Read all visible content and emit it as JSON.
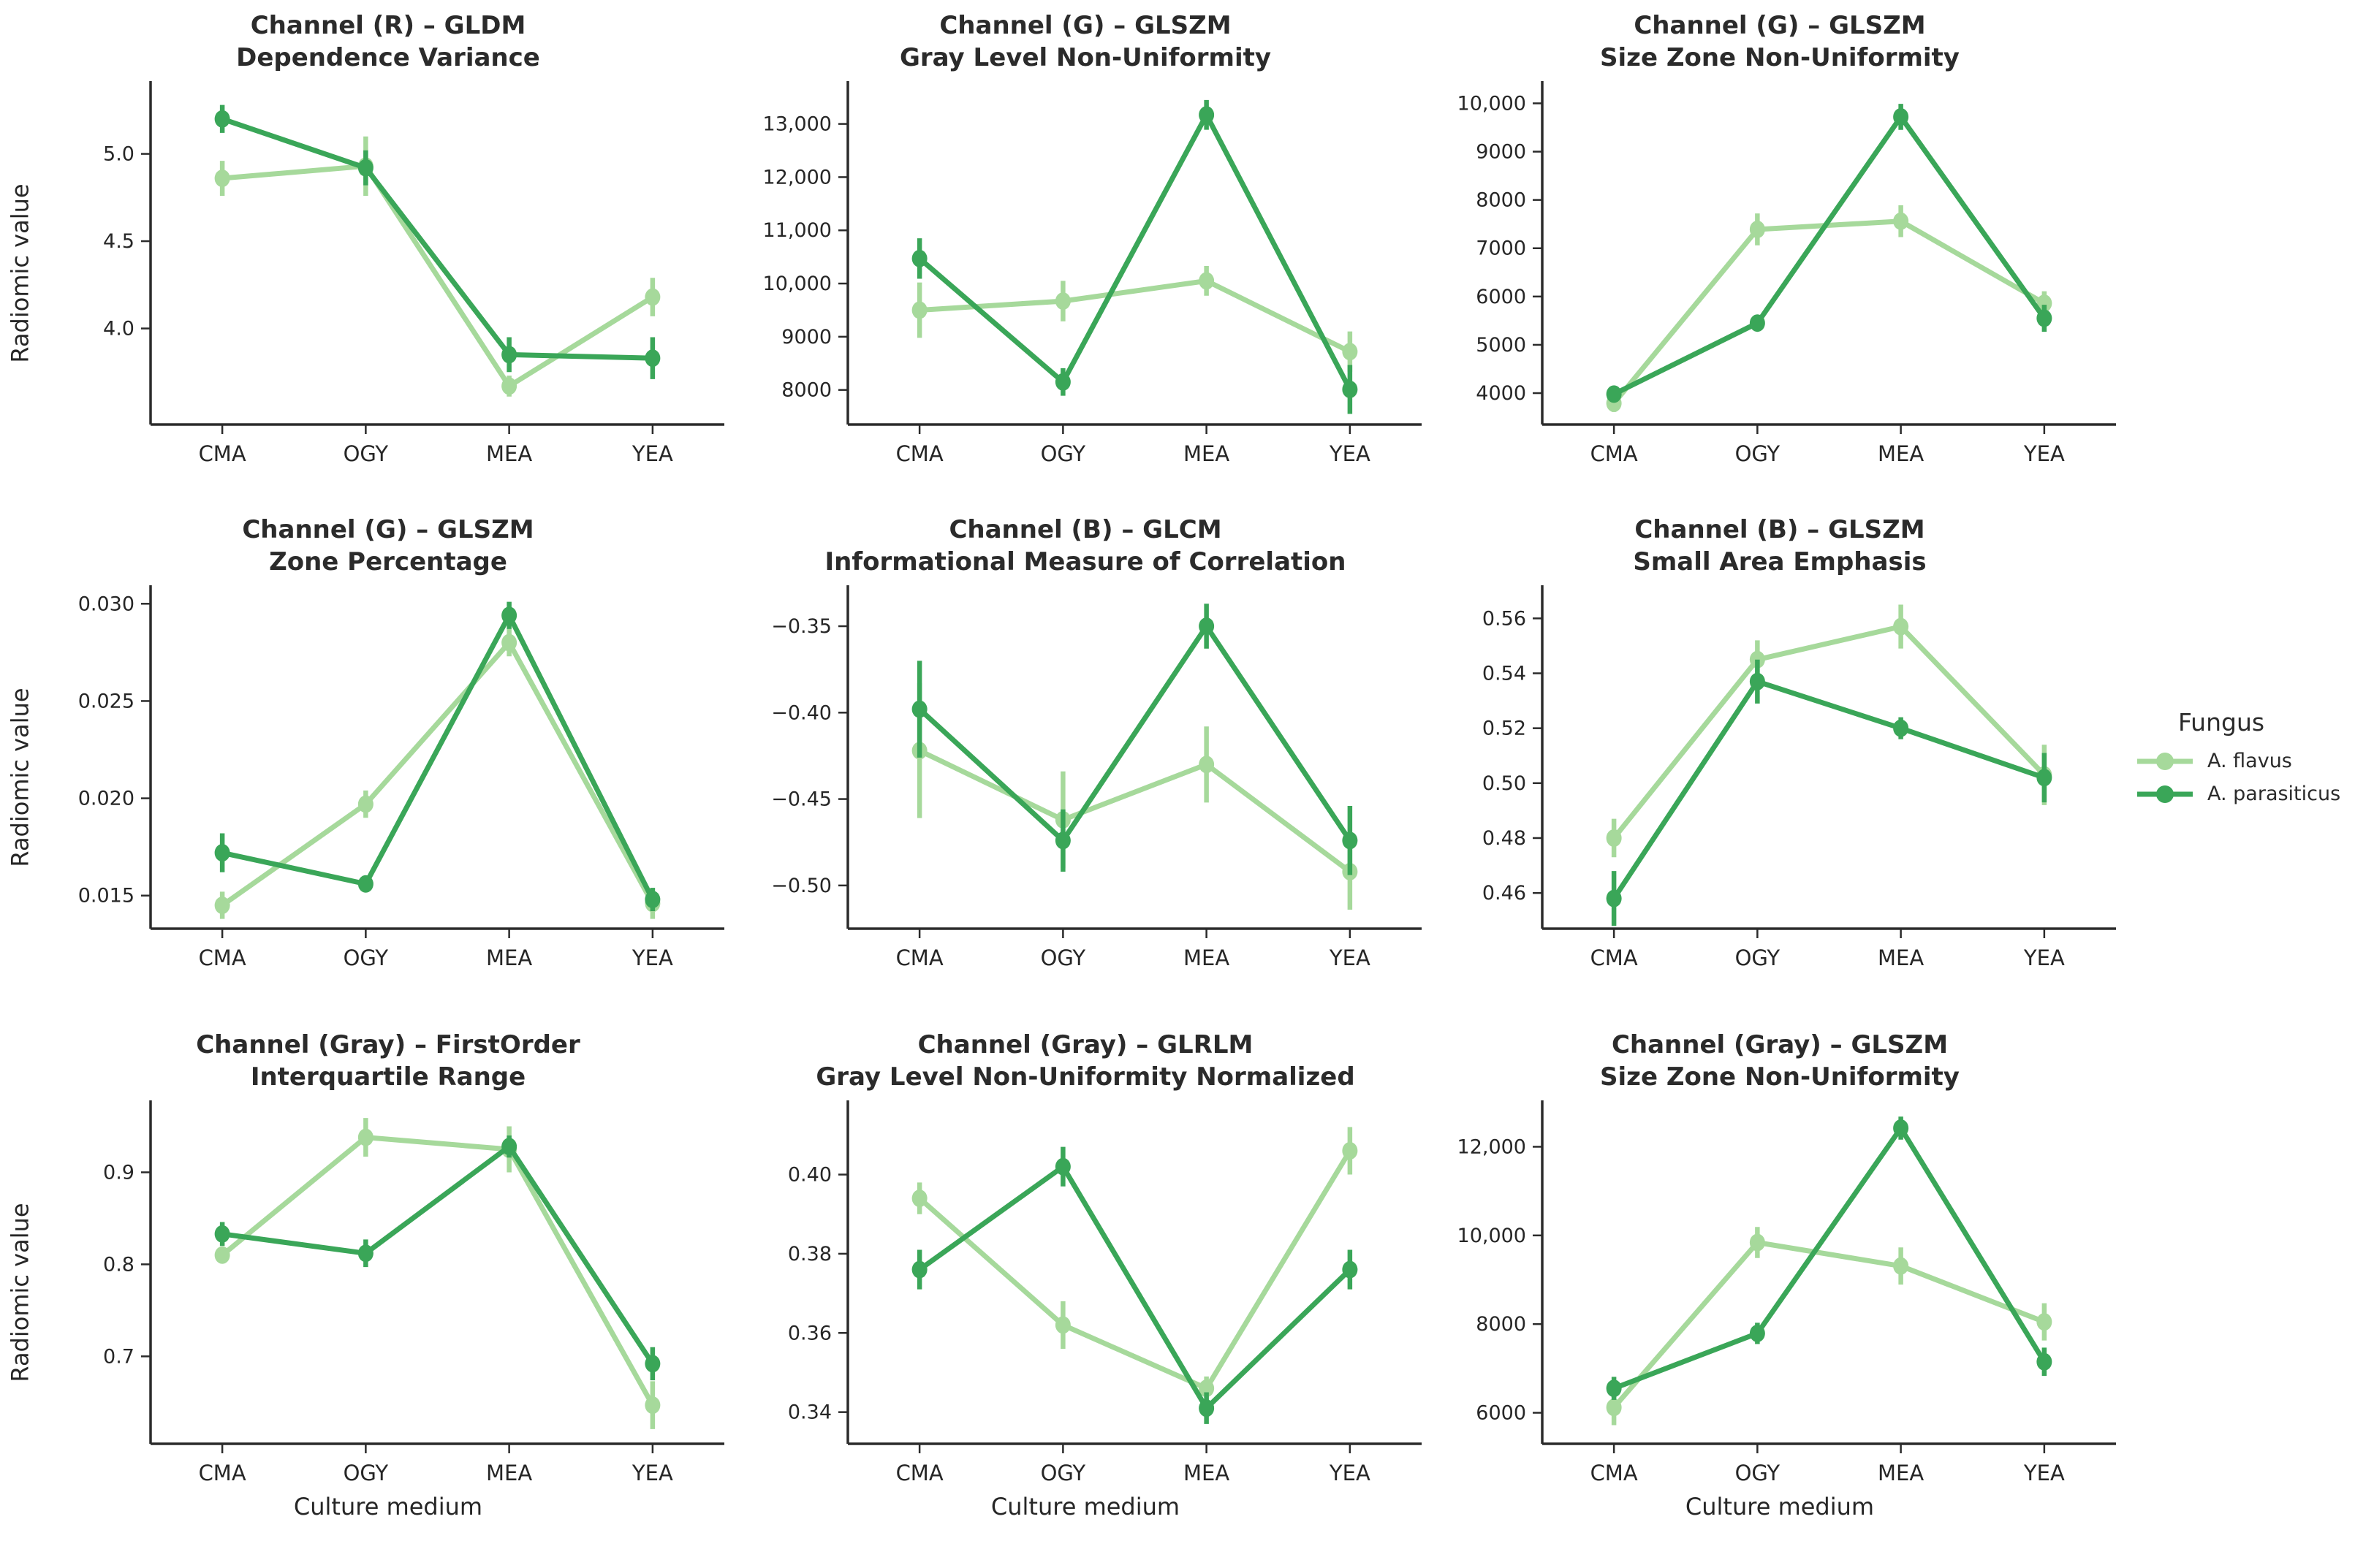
{
  "figure": {
    "ylabel": "Radiomic value",
    "xlabel": "Culture medium",
    "categories": [
      "CMA",
      "OGY",
      "MEA",
      "YEA"
    ],
    "legend": {
      "title": "Fungus",
      "position": "right-middle",
      "items": [
        {
          "label": "A. flavus",
          "color": "#a6d99b"
        },
        {
          "label": "A. parasiticus",
          "color": "#3aa658"
        }
      ]
    },
    "colors": {
      "flavus": "#a6d99b",
      "parasiticus": "#3aa658",
      "spine": "#2b2b2b",
      "text": "#262626"
    }
  },
  "chart_data": [
    {
      "type": "line",
      "title_line1": "Channel (R) – GLDM",
      "title_line2": "Dependence Variance",
      "categories": [
        "CMA",
        "OGY",
        "MEA",
        "YEA"
      ],
      "ylim": [
        3.45,
        5.4
      ],
      "yticks": [
        4.0,
        4.5,
        5.0
      ],
      "ytick_labels": [
        "4.0",
        "4.5",
        "5.0"
      ],
      "show_ylabel": true,
      "show_xlabel": false,
      "series": [
        {
          "name": "A. flavus",
          "values": [
            4.86,
            4.93,
            3.67,
            4.18
          ],
          "errors": [
            0.1,
            0.17,
            0.06,
            0.11
          ]
        },
        {
          "name": "A. parasiticus",
          "values": [
            5.2,
            4.92,
            3.85,
            3.83
          ],
          "errors": [
            0.08,
            0.1,
            0.1,
            0.12
          ]
        }
      ]
    },
    {
      "type": "line",
      "title_line1": "Channel (G) – GLSZM",
      "title_line2": "Gray Level Non-Uniformity",
      "categories": [
        "CMA",
        "OGY",
        "MEA",
        "YEA"
      ],
      "ylim": [
        7350,
        13750
      ],
      "yticks": [
        8000,
        9000,
        10000,
        11000,
        12000,
        13000
      ],
      "ytick_labels": [
        "8000",
        "9000",
        "10,000",
        "11,000",
        "12,000",
        "13,000"
      ],
      "show_ylabel": false,
      "show_xlabel": false,
      "series": [
        {
          "name": "A. flavus",
          "values": [
            9500,
            9670,
            10050,
            8720
          ],
          "errors": [
            520,
            380,
            280,
            380
          ]
        },
        {
          "name": "A. parasiticus",
          "values": [
            10470,
            8150,
            13170,
            8010
          ],
          "errors": [
            380,
            260,
            280,
            460
          ]
        }
      ]
    },
    {
      "type": "line",
      "title_line1": "Channel (G) – GLSZM",
      "title_line2": "Size Zone Non-Uniformity",
      "categories": [
        "CMA",
        "OGY",
        "MEA",
        "YEA"
      ],
      "ylim": [
        3350,
        10400
      ],
      "yticks": [
        4000,
        5000,
        6000,
        7000,
        8000,
        9000,
        10000
      ],
      "ytick_labels": [
        "4000",
        "5000",
        "6000",
        "7000",
        "8000",
        "9000",
        "10,000"
      ],
      "show_ylabel": false,
      "show_xlabel": false,
      "series": [
        {
          "name": "A. flavus",
          "values": [
            3790,
            7390,
            7560,
            5860
          ],
          "errors": [
            180,
            330,
            330,
            250
          ]
        },
        {
          "name": "A. parasiticus",
          "values": [
            3980,
            5450,
            9720,
            5550
          ],
          "errors": [
            150,
            150,
            270,
            280
          ]
        }
      ]
    },
    {
      "type": "line",
      "title_line1": "Channel (G) – GLSZM",
      "title_line2": "Zone Percentage",
      "categories": [
        "CMA",
        "OGY",
        "MEA",
        "YEA"
      ],
      "ylim": [
        0.0133,
        0.0308
      ],
      "yticks": [
        0.015,
        0.02,
        0.025,
        0.03
      ],
      "ytick_labels": [
        "0.015",
        "0.020",
        "0.025",
        "0.030"
      ],
      "show_ylabel": true,
      "show_xlabel": false,
      "series": [
        {
          "name": "A. flavus",
          "values": [
            0.0145,
            0.0197,
            0.028,
            0.0146
          ],
          "errors": [
            0.0007,
            0.0007,
            0.0007,
            0.0008
          ]
        },
        {
          "name": "A. parasiticus",
          "values": [
            0.0172,
            0.0156,
            0.0294,
            0.0148
          ],
          "errors": [
            0.001,
            0.0004,
            0.0007,
            0.0006
          ]
        }
      ]
    },
    {
      "type": "line",
      "title_line1": "Channel (B) – GLCM",
      "title_line2": "Informational Measure of Correlation",
      "categories": [
        "CMA",
        "OGY",
        "MEA",
        "YEA"
      ],
      "ylim": [
        -0.525,
        -0.328
      ],
      "yticks": [
        -0.5,
        -0.45,
        -0.4,
        -0.35
      ],
      "ytick_labels": [
        "−0.50",
        "−0.45",
        "−0.40",
        "−0.35"
      ],
      "show_ylabel": false,
      "show_xlabel": false,
      "series": [
        {
          "name": "A. flavus",
          "values": [
            -0.422,
            -0.462,
            -0.43,
            -0.492
          ],
          "errors": [
            0.039,
            0.028,
            0.022,
            0.022
          ]
        },
        {
          "name": "A. parasiticus",
          "values": [
            -0.398,
            -0.474,
            -0.35,
            -0.474
          ],
          "errors": [
            0.028,
            0.018,
            0.013,
            0.02
          ]
        }
      ]
    },
    {
      "type": "line",
      "title_line1": "Channel (B) – GLSZM",
      "title_line2": "Small Area Emphasis",
      "categories": [
        "CMA",
        "OGY",
        "MEA",
        "YEA"
      ],
      "ylim": [
        0.447,
        0.571
      ],
      "yticks": [
        0.46,
        0.48,
        0.5,
        0.52,
        0.54,
        0.56
      ],
      "ytick_labels": [
        "0.46",
        "0.48",
        "0.50",
        "0.52",
        "0.54",
        "0.56"
      ],
      "show_ylabel": false,
      "show_xlabel": false,
      "series": [
        {
          "name": "A. flavus",
          "values": [
            0.48,
            0.545,
            0.557,
            0.503
          ],
          "errors": [
            0.007,
            0.007,
            0.008,
            0.011
          ]
        },
        {
          "name": "A. parasiticus",
          "values": [
            0.458,
            0.537,
            0.52,
            0.502
          ],
          "errors": [
            0.01,
            0.008,
            0.004,
            0.009
          ]
        }
      ]
    },
    {
      "type": "line",
      "title_line1": "Channel (Gray) – FirstOrder",
      "title_line2": "Interquartile Range",
      "categories": [
        "CMA",
        "OGY",
        "MEA",
        "YEA"
      ],
      "ylim": [
        0.605,
        0.975
      ],
      "yticks": [
        0.7,
        0.8,
        0.9
      ],
      "ytick_labels": [
        "0.7",
        "0.8",
        "0.9"
      ],
      "show_ylabel": true,
      "show_xlabel": true,
      "series": [
        {
          "name": "A. flavus",
          "values": [
            0.81,
            0.938,
            0.925,
            0.647
          ],
          "errors": [
            0.009,
            0.021,
            0.025,
            0.026
          ]
        },
        {
          "name": "A. parasiticus",
          "values": [
            0.833,
            0.812,
            0.928,
            0.692
          ],
          "errors": [
            0.013,
            0.015,
            0.012,
            0.018
          ]
        }
      ]
    },
    {
      "type": "line",
      "title_line1": "Channel (Gray) – GLRLM",
      "title_line2": "Gray Level Non-Uniformity Normalized",
      "categories": [
        "CMA",
        "OGY",
        "MEA",
        "YEA"
      ],
      "ylim": [
        0.332,
        0.418
      ],
      "yticks": [
        0.34,
        0.36,
        0.38,
        0.4
      ],
      "ytick_labels": [
        "0.34",
        "0.36",
        "0.38",
        "0.40"
      ],
      "show_ylabel": false,
      "show_xlabel": true,
      "series": [
        {
          "name": "A. flavus",
          "values": [
            0.394,
            0.362,
            0.346,
            0.406
          ],
          "errors": [
            0.004,
            0.006,
            0.003,
            0.006
          ]
        },
        {
          "name": "A. parasiticus",
          "values": [
            0.376,
            0.402,
            0.341,
            0.376
          ],
          "errors": [
            0.005,
            0.005,
            0.004,
            0.005
          ]
        }
      ]
    },
    {
      "type": "line",
      "title_line1": "Channel (Gray) – GLSZM",
      "title_line2": "Size Zone Non-Uniformity",
      "categories": [
        "CMA",
        "OGY",
        "MEA",
        "YEA"
      ],
      "ylim": [
        5300,
        12980
      ],
      "yticks": [
        6000,
        8000,
        10000,
        12000
      ],
      "ytick_labels": [
        "6000",
        "8000",
        "10,000",
        "12,000"
      ],
      "show_ylabel": false,
      "show_xlabel": true,
      "series": [
        {
          "name": "A. flavus",
          "values": [
            6120,
            9840,
            9310,
            8050
          ],
          "errors": [
            400,
            350,
            420,
            420
          ]
        },
        {
          "name": "A. parasiticus",
          "values": [
            6550,
            7790,
            12420,
            7150
          ],
          "errors": [
            260,
            240,
            260,
            320
          ]
        }
      ]
    }
  ]
}
